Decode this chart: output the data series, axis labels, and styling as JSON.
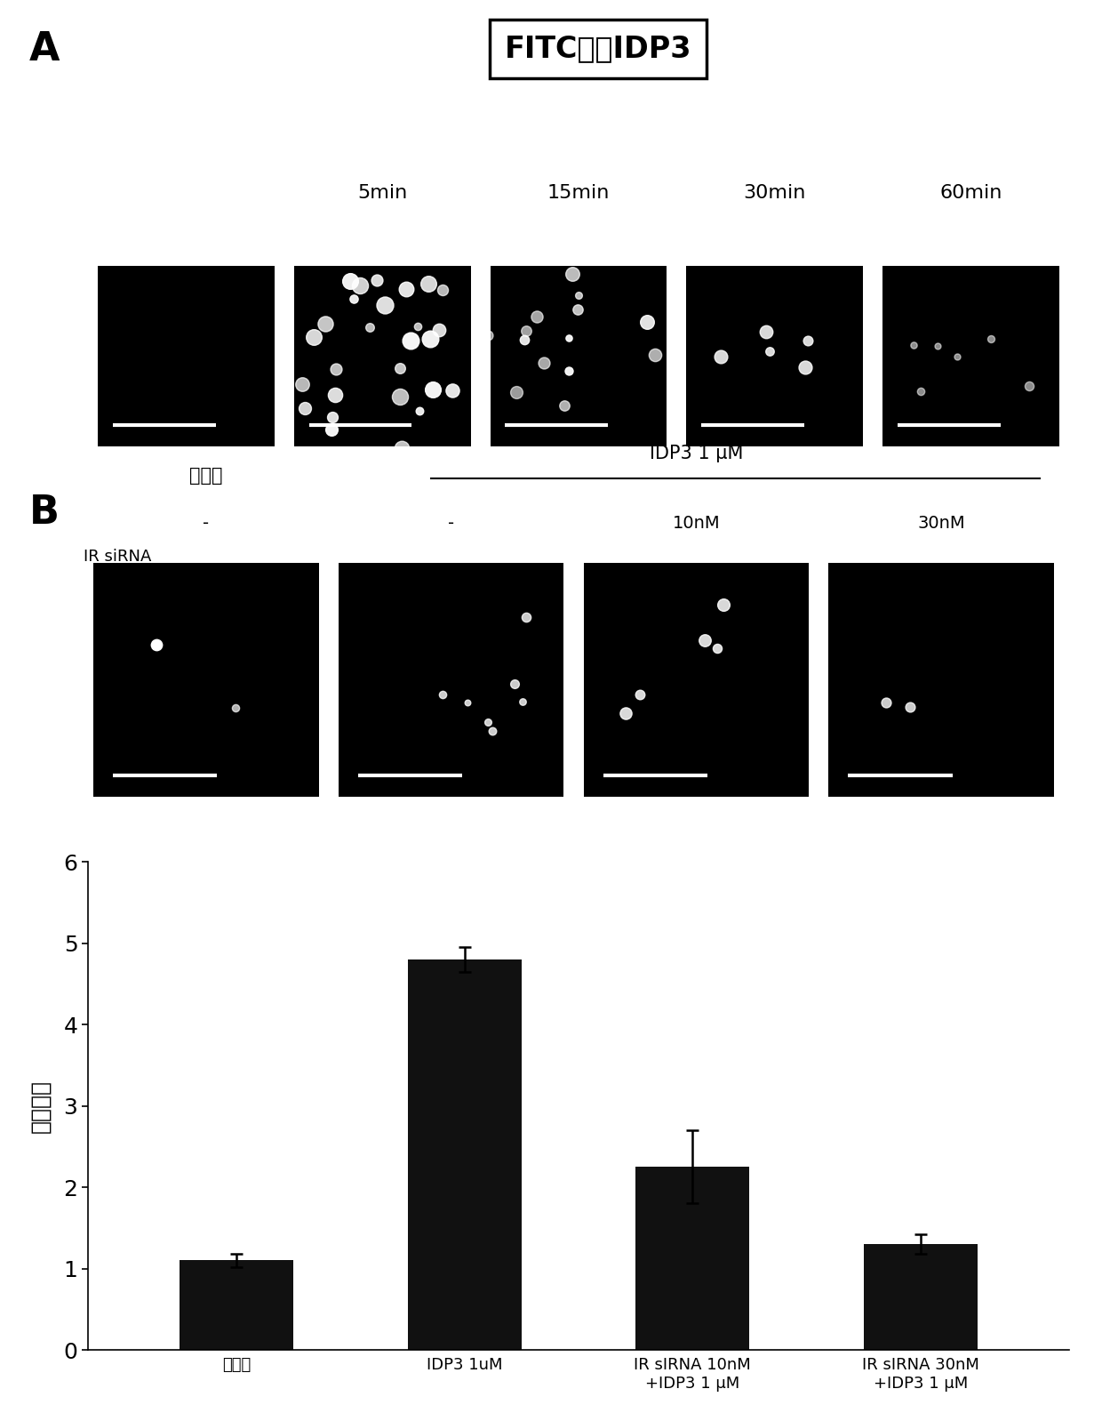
{
  "panel_A_label": "A",
  "panel_B_label": "B",
  "panel_A_title": "FITC共轭IDP3",
  "panel_A_time_labels": [
    "5min",
    "15min",
    "30min",
    "60min"
  ],
  "panel_B_header_left": "对照组",
  "panel_B_header_right": "IDP3 1 μM",
  "panel_B_siRNA_label": "IR siRNA",
  "panel_B_siRNA_values": [
    "-",
    "-",
    "10nM",
    "30nM"
  ],
  "bar_values": [
    1.1,
    4.8,
    2.25,
    1.3
  ],
  "bar_errors": [
    0.08,
    0.15,
    0.45,
    0.12
  ],
  "bar_color": "#111111",
  "bar_labels": [
    "对照组",
    "IDP3 1uM",
    "IR sIRNA 10nM\n+IDP3 1 μM",
    "IR sIRNA 30nM\n+IDP3 1 μM"
  ],
  "ylabel": "药光强度",
  "ylim": [
    0,
    6
  ],
  "yticks": [
    0,
    1,
    2,
    3,
    4,
    5,
    6
  ],
  "fig_bg": "#ffffff"
}
